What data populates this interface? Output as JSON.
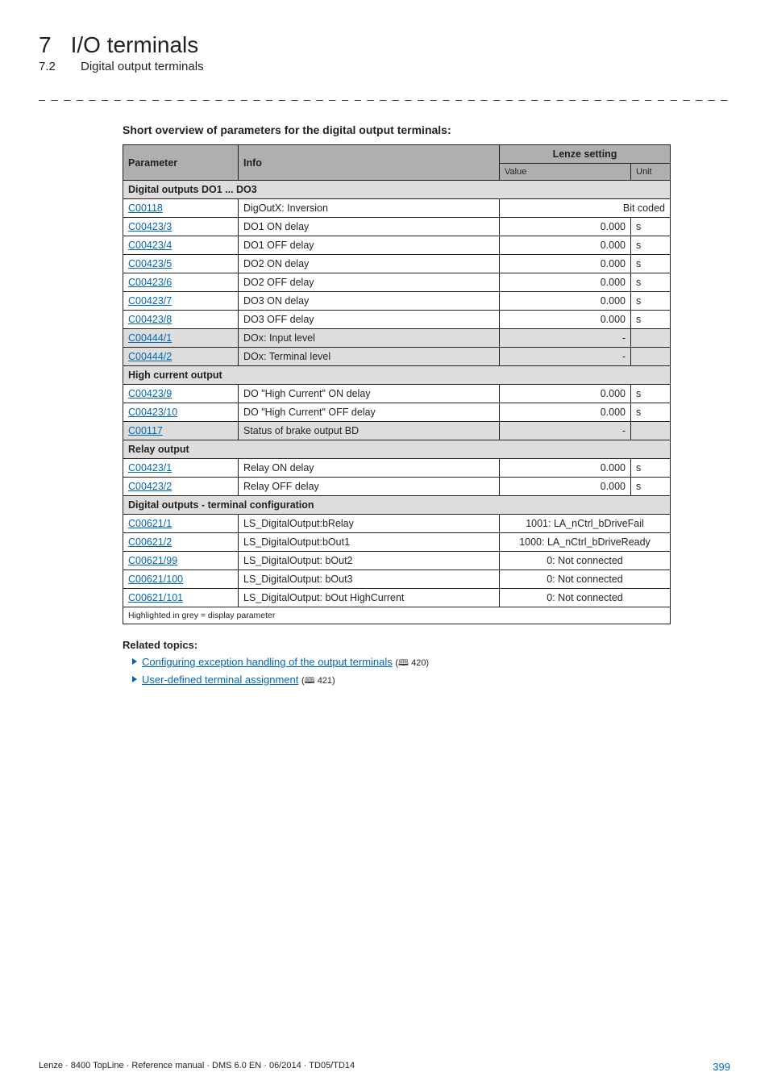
{
  "header": {
    "chapter_num": "7",
    "chapter_title": "I/O terminals",
    "sub_num": "7.2",
    "sub_title": "Digital output terminals"
  },
  "section_title": "Short overview of parameters for the digital output terminals:",
  "table": {
    "head": {
      "param": "Parameter",
      "info": "Info",
      "lenze": "Lenze setting",
      "value": "Value",
      "unit": "Unit"
    },
    "groups": [
      {
        "label": "Digital outputs DO1 ... DO3",
        "rows": [
          {
            "p": "C00118",
            "info": "DigOutX: Inversion",
            "val": "Bit coded",
            "unit": "",
            "span": true
          },
          {
            "p": "C00423/3",
            "info": "DO1 ON delay",
            "val": "0.000",
            "unit": "s"
          },
          {
            "p": "C00423/4",
            "info": "DO1 OFF delay",
            "val": "0.000",
            "unit": "s"
          },
          {
            "p": "C00423/5",
            "info": "DO2 ON delay",
            "val": "0.000",
            "unit": "s"
          },
          {
            "p": "C00423/6",
            "info": "DO2 OFF delay",
            "val": "0.000",
            "unit": "s"
          },
          {
            "p": "C00423/7",
            "info": "DO3 ON delay",
            "val": "0.000",
            "unit": "s"
          },
          {
            "p": "C00423/8",
            "info": "DO3 OFF delay",
            "val": "0.000",
            "unit": "s"
          },
          {
            "p": "C00444/1",
            "info": "DOx: Input level",
            "val": "-",
            "unit": "",
            "shade": true
          },
          {
            "p": "C00444/2",
            "info": "DOx: Terminal level",
            "val": "-",
            "unit": "",
            "shade": true
          }
        ]
      },
      {
        "label": "High current output",
        "rows": [
          {
            "p": "C00423/9",
            "info": "DO \"High Current\" ON delay",
            "val": "0.000",
            "unit": "s"
          },
          {
            "p": "C00423/10",
            "info": "DO \"High Current\" OFF delay",
            "val": "0.000",
            "unit": "s"
          },
          {
            "p": "C00117",
            "info": "Status of brake output BD",
            "val": "-",
            "unit": "",
            "shade": true
          }
        ]
      },
      {
        "label": "Relay output",
        "rows": [
          {
            "p": "C00423/1",
            "info": "Relay ON delay",
            "val": "0.000",
            "unit": "s"
          },
          {
            "p": "C00423/2",
            "info": "Relay OFF delay",
            "val": "0.000",
            "unit": "s"
          }
        ]
      },
      {
        "label": "Digital outputs - terminal configuration",
        "rows": [
          {
            "p": "C00621/1",
            "info": "LS_DigitalOutput:bRelay",
            "val": "1001: LA_nCtrl_bDriveFail",
            "unit": "",
            "span": true,
            "center": true
          },
          {
            "p": "C00621/2",
            "info": "LS_DigitalOutput:bOut1",
            "val": "1000: LA_nCtrl_bDriveReady",
            "unit": "",
            "span": true,
            "center": true
          },
          {
            "p": "C00621/99",
            "info": "LS_DigitalOutput: bOut2",
            "val": "0: Not connected",
            "unit": "",
            "span": true,
            "center": true
          },
          {
            "p": "C00621/100",
            "info": "LS_DigitalOutput: bOut3",
            "val": "0: Not connected",
            "unit": "",
            "span": true,
            "center": true
          },
          {
            "p": "C00621/101",
            "info": "LS_DigitalOutput: bOut HighCurrent",
            "val": "0: Not connected",
            "unit": "",
            "span": true,
            "center": true
          }
        ]
      }
    ],
    "footnote": "Highlighted in grey = display parameter"
  },
  "related": {
    "title": "Related topics:",
    "items": [
      {
        "text": "Configuring exception handling of the output terminals",
        "page": "420"
      },
      {
        "text": "User-defined terminal assignment",
        "page": "421"
      }
    ]
  },
  "footer": {
    "left": "Lenze · 8400 TopLine · Reference manual · DMS 6.0 EN · 06/2014 · TD05/TD14",
    "page": "399"
  }
}
